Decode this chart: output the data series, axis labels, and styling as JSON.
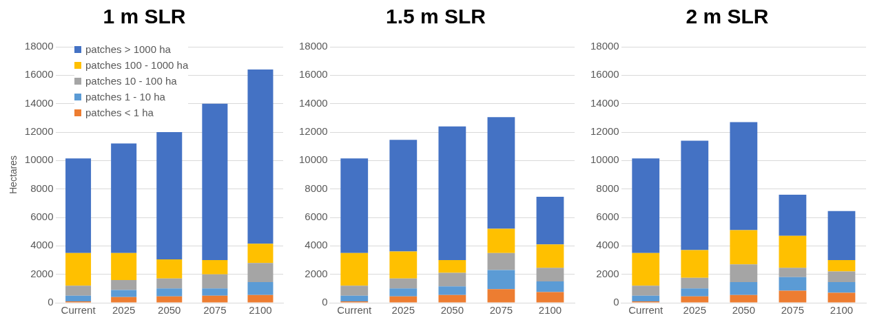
{
  "chart_data": [
    {
      "type": "bar",
      "title": "1 m SLR",
      "ylabel": "Hectares",
      "stacked": true,
      "grid": "y",
      "legend": "top left",
      "categories": [
        "Current",
        "2025",
        "2050",
        "2075",
        "2100"
      ],
      "ylim": [
        0,
        18000
      ],
      "yticks": [
        0,
        2000,
        4000,
        6000,
        8000,
        10000,
        12000,
        14000,
        16000,
        18000
      ],
      "series": [
        {
          "name": "patches < 1 ha",
          "color": "#ed7d31",
          "values": [
            100,
            400,
            450,
            500,
            550
          ]
        },
        {
          "name": "patches 1 - 10 ha",
          "color": "#5b9bd5",
          "values": [
            400,
            500,
            550,
            500,
            900
          ]
        },
        {
          "name": "patches 10 - 100 ha",
          "color": "#a5a5a5",
          "values": [
            700,
            700,
            700,
            1000,
            1350
          ]
        },
        {
          "name": "patches 100 - 1000 ha",
          "color": "#ffc000",
          "values": [
            2300,
            1900,
            1350,
            1000,
            1350
          ]
        },
        {
          "name": "patches > 1000 ha",
          "color": "#4472c4",
          "values": [
            6650,
            7700,
            8950,
            11000,
            12250
          ]
        }
      ]
    },
    {
      "type": "bar",
      "title": "1.5 m SLR",
      "stacked": true,
      "grid": "y",
      "categories": [
        "Current",
        "2025",
        "2050",
        "2075",
        "2100"
      ],
      "ylim": [
        0,
        18000
      ],
      "yticks": [
        0,
        2000,
        4000,
        6000,
        8000,
        10000,
        12000,
        14000,
        16000,
        18000
      ],
      "series": [
        {
          "color": "#ed7d31",
          "values": [
            100,
            450,
            550,
            950,
            750
          ]
        },
        {
          "color": "#5b9bd5",
          "values": [
            400,
            550,
            600,
            1350,
            750
          ]
        },
        {
          "color": "#a5a5a5",
          "values": [
            700,
            700,
            950,
            1200,
            950
          ]
        },
        {
          "color": "#ffc000",
          "values": [
            2300,
            1900,
            900,
            1700,
            1650
          ]
        },
        {
          "color": "#4472c4",
          "values": [
            6650,
            7850,
            9400,
            7850,
            3350
          ]
        }
      ]
    },
    {
      "type": "bar",
      "title": "2 m SLR",
      "stacked": true,
      "grid": "y",
      "categories": [
        "Current",
        "2025",
        "2050",
        "2075",
        "2100"
      ],
      "ylim": [
        0,
        18000
      ],
      "yticks": [
        0,
        2000,
        4000,
        6000,
        8000,
        10000,
        12000,
        14000,
        16000,
        18000
      ],
      "series": [
        {
          "color": "#ed7d31",
          "values": [
            100,
            450,
            550,
            850,
            700
          ]
        },
        {
          "color": "#5b9bd5",
          "values": [
            400,
            550,
            900,
            950,
            750
          ]
        },
        {
          "color": "#a5a5a5",
          "values": [
            700,
            750,
            1250,
            650,
            750
          ]
        },
        {
          "color": "#ffc000",
          "values": [
            2300,
            1950,
            2400,
            2250,
            800
          ]
        },
        {
          "color": "#4472c4",
          "values": [
            6650,
            7700,
            7600,
            2900,
            3450
          ]
        }
      ]
    }
  ]
}
